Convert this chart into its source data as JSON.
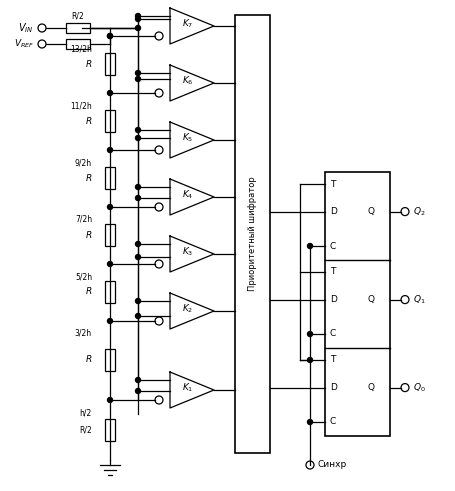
{
  "bg_color": "#ffffff",
  "fig_width": 4.56,
  "fig_height": 4.91,
  "dpi": 100,
  "voltage_labels": [
    "13/2h",
    "11/2h",
    "9/2h",
    "7/2h",
    "5/2h",
    "3/2h",
    "h/2"
  ],
  "comparator_labels": [
    "K_7",
    "K_6",
    "K_5",
    "K_4",
    "K_3",
    "K_2",
    "K_1"
  ],
  "priority_encoder_label": "Приоритетный шифратор",
  "sync_label": "Синхр"
}
